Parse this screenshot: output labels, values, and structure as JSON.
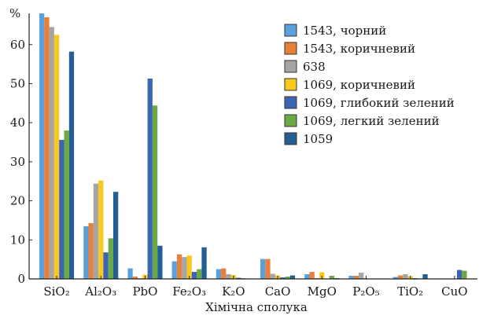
{
  "chart_data": {
    "type": "bar",
    "title": "",
    "xlabel": "Хімічна сполука",
    "ylabel": "%",
    "ylim": [
      0,
      68
    ],
    "yticks": [
      0,
      10,
      20,
      30,
      40,
      50,
      60
    ],
    "grid": false,
    "legend_position": "top-right",
    "categories": [
      "SiO₂",
      "Al₂O₃",
      "PbO",
      "Fe₂O₃",
      "K₂O",
      "CaO",
      "MgO",
      "P₂O₅",
      "TiO₂",
      "CuO"
    ],
    "series": [
      {
        "name": "1543, чорний",
        "color": "#5aa0dc",
        "values": [
          68,
          13.5,
          2.7,
          4.5,
          2.5,
          5.1,
          1.2,
          0.8,
          0.5,
          0.1
        ]
      },
      {
        "name": "1543, коричневий",
        "color": "#e8803a",
        "values": [
          67,
          14.3,
          0.6,
          6.3,
          2.7,
          5.1,
          1.8,
          0.8,
          0.9,
          0.1
        ]
      },
      {
        "name": "638",
        "color": "#a5a5a5",
        "values": [
          64.5,
          24.4,
          0.2,
          5.6,
          1.2,
          1.3,
          0.2,
          1.6,
          1.2,
          0.1
        ]
      },
      {
        "name": "1069, коричневий",
        "color": "#f7c81e",
        "values": [
          62.5,
          25.2,
          1.1,
          6.0,
          1.0,
          0.9,
          1.7,
          0.2,
          0.7,
          0.1
        ]
      },
      {
        "name": "1069, глибокий зелений",
        "color": "#3c64b4",
        "values": [
          35.6,
          6.8,
          51.3,
          1.8,
          0.3,
          0.4,
          0.1,
          0.1,
          0.2,
          2.3
        ]
      },
      {
        "name": "1069, легкий зелений",
        "color": "#6aaa46",
        "values": [
          38,
          10.4,
          44.4,
          2.5,
          0.2,
          0.6,
          0.8,
          0.1,
          0.1,
          2.1
        ]
      },
      {
        "name": "1059",
        "color": "#255e91",
        "values": [
          58.2,
          22.3,
          8.5,
          8.1,
          0.1,
          0.9,
          0.2,
          0.1,
          1.2,
          0.1
        ]
      }
    ]
  }
}
